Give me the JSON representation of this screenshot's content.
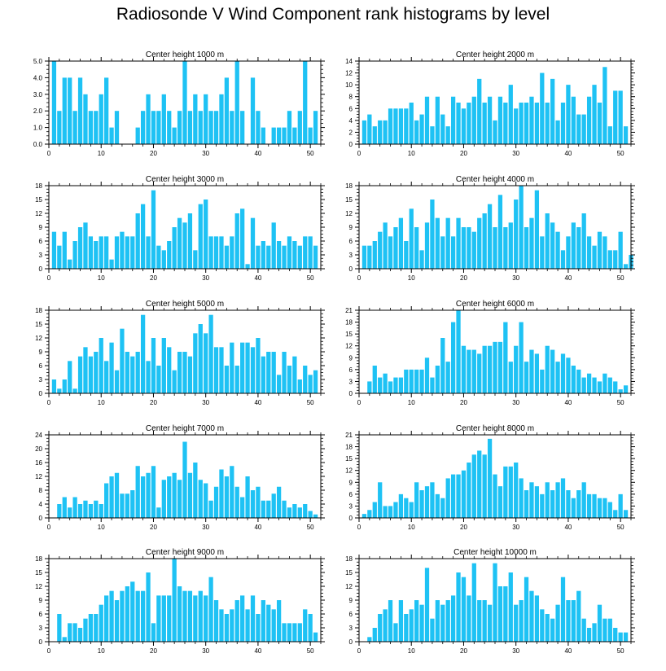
{
  "title": "Radiosonde V Wind Component rank histograms by level",
  "bar_color": "#1ec2f4",
  "chart_data": [
    {
      "type": "bar",
      "title": "Center height 1000 m",
      "xlim": [
        0,
        52
      ],
      "ylim": [
        0,
        5
      ],
      "yticks": [
        0,
        1,
        2,
        3,
        4,
        5
      ],
      "ytick_labels": [
        "0.0",
        "1.0",
        "2.0",
        "3.0",
        "4.0",
        "5.0"
      ],
      "xticks": [
        0,
        10,
        20,
        30,
        40,
        50
      ],
      "values": [
        5,
        2,
        4,
        4,
        2,
        4,
        3,
        2,
        2,
        3,
        4,
        1,
        2,
        0,
        0,
        0,
        1,
        2,
        3,
        2,
        2,
        3,
        2,
        1,
        2,
        5,
        2,
        3,
        2,
        3,
        2,
        2,
        3,
        4,
        2,
        5,
        2,
        0,
        4,
        2,
        1,
        0,
        1,
        1,
        1,
        2,
        1,
        2,
        5,
        1,
        2
      ]
    },
    {
      "type": "bar",
      "title": "Center height 2000 m",
      "xlim": [
        0,
        52
      ],
      "ylim": [
        0,
        14
      ],
      "yticks": [
        0,
        2,
        4,
        6,
        8,
        10,
        12,
        14
      ],
      "ytick_labels": [
        "0",
        "2",
        "4",
        "6",
        "8",
        "10",
        "12",
        "14"
      ],
      "xticks": [
        0,
        10,
        20,
        30,
        40,
        50
      ],
      "values": [
        4,
        5,
        3,
        4,
        4,
        6,
        6,
        6,
        6,
        7,
        4,
        5,
        8,
        3,
        8,
        5,
        3,
        8,
        7,
        6,
        7,
        8,
        11,
        7,
        8,
        4,
        8,
        7,
        10,
        6,
        7,
        7,
        8,
        7,
        12,
        7,
        11,
        4,
        7,
        10,
        8,
        5,
        5,
        8,
        10,
        7,
        13,
        3,
        9,
        9,
        3
      ]
    },
    {
      "type": "bar",
      "title": "Center height 3000 m",
      "xlim": [
        0,
        52
      ],
      "ylim": [
        0,
        18
      ],
      "yticks": [
        0,
        3,
        6,
        9,
        12,
        15,
        18
      ],
      "ytick_labels": [
        "0",
        "3",
        "6",
        "9",
        "12",
        "15",
        "18"
      ],
      "xticks": [
        0,
        10,
        20,
        30,
        40,
        50
      ],
      "values": [
        8,
        5,
        8,
        2,
        6,
        9,
        10,
        7,
        6,
        7,
        7,
        2,
        7,
        8,
        7,
        7,
        12,
        14,
        7,
        17,
        5,
        4,
        6,
        9,
        11,
        10,
        12,
        4,
        14,
        15,
        7,
        7,
        7,
        5,
        7,
        12,
        13,
        1,
        11,
        5,
        6,
        5,
        10,
        6,
        5,
        7,
        6,
        5,
        7,
        7,
        5
      ]
    },
    {
      "type": "bar",
      "title": "Center height 4000 m",
      "xlim": [
        0,
        52
      ],
      "ylim": [
        0,
        18
      ],
      "yticks": [
        0,
        3,
        6,
        9,
        12,
        15,
        18
      ],
      "ytick_labels": [
        "0",
        "3",
        "6",
        "9",
        "12",
        "15",
        "18"
      ],
      "xticks": [
        0,
        10,
        20,
        30,
        40,
        50
      ],
      "values": [
        5,
        5,
        6,
        8,
        10,
        7,
        9,
        11,
        6,
        13,
        9,
        4,
        10,
        15,
        11,
        7,
        11,
        7,
        11,
        9,
        9,
        8,
        11,
        12,
        14,
        9,
        16,
        9,
        10,
        15,
        18,
        9,
        11,
        17,
        7,
        12,
        10,
        8,
        4,
        7,
        10,
        9,
        12,
        7,
        5,
        8,
        7,
        4,
        4,
        8,
        1,
        3
      ]
    },
    {
      "type": "bar",
      "title": "Center height 5000 m",
      "xlim": [
        0,
        52
      ],
      "ylim": [
        0,
        18
      ],
      "yticks": [
        0,
        3,
        6,
        9,
        12,
        15,
        18
      ],
      "ytick_labels": [
        "0",
        "3",
        "6",
        "9",
        "12",
        "15",
        "18"
      ],
      "xticks": [
        0,
        10,
        20,
        30,
        40,
        50
      ],
      "values": [
        3,
        1,
        3,
        7,
        1,
        8,
        10,
        8,
        9,
        12,
        7,
        11,
        5,
        14,
        9,
        8,
        9,
        17,
        7,
        12,
        6,
        12,
        10,
        5,
        9,
        9,
        8,
        13,
        15,
        13,
        17,
        10,
        10,
        6,
        11,
        6,
        11,
        11,
        10,
        12,
        8,
        9,
        9,
        4,
        9,
        6,
        8,
        3,
        6,
        4,
        5
      ]
    },
    {
      "type": "bar",
      "title": "Center height 6000 m",
      "xlim": [
        0,
        52
      ],
      "ylim": [
        0,
        21
      ],
      "yticks": [
        0,
        3,
        6,
        9,
        12,
        15,
        18,
        21
      ],
      "ytick_labels": [
        "0",
        "3",
        "6",
        "9",
        "12",
        "15",
        "18",
        "21"
      ],
      "xticks": [
        0,
        10,
        20,
        30,
        40,
        50
      ],
      "values": [
        0,
        3,
        7,
        4,
        5,
        3,
        4,
        4,
        6,
        6,
        6,
        6,
        9,
        4,
        7,
        14,
        8,
        18,
        21,
        12,
        11,
        11,
        10,
        12,
        12,
        13,
        13,
        18,
        8,
        12,
        18,
        8,
        11,
        10,
        6,
        12,
        11,
        8,
        10,
        9,
        7,
        6,
        4,
        5,
        4,
        3,
        5,
        4,
        3,
        1,
        2
      ]
    },
    {
      "type": "bar",
      "title": "Center height 7000 m",
      "xlim": [
        0,
        52
      ],
      "ylim": [
        0,
        24
      ],
      "yticks": [
        0,
        4,
        8,
        12,
        16,
        20,
        24
      ],
      "ytick_labels": [
        "0",
        "4",
        "8",
        "12",
        "16",
        "20",
        "24"
      ],
      "xticks": [
        0,
        10,
        20,
        30,
        40,
        50
      ],
      "values": [
        0,
        4,
        6,
        3,
        6,
        4,
        5,
        4,
        5,
        4,
        10,
        12,
        13,
        7,
        7,
        8,
        15,
        12,
        13,
        15,
        3,
        11,
        12,
        13,
        11,
        22,
        13,
        16,
        11,
        10,
        5,
        9,
        14,
        12,
        15,
        9,
        6,
        12,
        8,
        9,
        5,
        5,
        7,
        9,
        5,
        3,
        4,
        3,
        4,
        2,
        1
      ]
    },
    {
      "type": "bar",
      "title": "Center height 8000 m",
      "xlim": [
        0,
        52
      ],
      "ylim": [
        0,
        21
      ],
      "yticks": [
        0,
        3,
        6,
        9,
        12,
        15,
        18,
        21
      ],
      "ytick_labels": [
        "0",
        "3",
        "6",
        "9",
        "12",
        "15",
        "18",
        "21"
      ],
      "xticks": [
        0,
        10,
        20,
        30,
        40,
        50
      ],
      "values": [
        1,
        2,
        4,
        9,
        3,
        3,
        4,
        6,
        5,
        4,
        9,
        7,
        8,
        9,
        6,
        5,
        10,
        11,
        11,
        12,
        14,
        16,
        17,
        16,
        20,
        11,
        8,
        13,
        13,
        14,
        10,
        7,
        9,
        8,
        6,
        9,
        7,
        9,
        10,
        7,
        5,
        7,
        9,
        6,
        6,
        5,
        5,
        4,
        2,
        6,
        2
      ]
    },
    {
      "type": "bar",
      "title": "Center height 9000 m",
      "xlim": [
        0,
        52
      ],
      "ylim": [
        0,
        18
      ],
      "yticks": [
        0,
        3,
        6,
        9,
        12,
        15,
        18
      ],
      "ytick_labels": [
        "0",
        "3",
        "6",
        "9",
        "12",
        "15",
        "18"
      ],
      "xticks": [
        0,
        10,
        20,
        30,
        40,
        50
      ],
      "values": [
        0,
        6,
        1,
        4,
        4,
        3,
        5,
        6,
        6,
        8,
        10,
        11,
        9,
        11,
        12,
        13,
        11,
        11,
        15,
        4,
        10,
        10,
        10,
        18,
        12,
        11,
        11,
        10,
        11,
        10,
        14,
        9,
        7,
        6,
        7,
        9,
        10,
        7,
        10,
        6,
        9,
        8,
        7,
        9,
        4,
        4,
        4,
        4,
        7,
        6,
        2
      ]
    },
    {
      "type": "bar",
      "title": "Center height 10000 m",
      "xlim": [
        0,
        52
      ],
      "ylim": [
        0,
        18
      ],
      "yticks": [
        0,
        3,
        6,
        9,
        12,
        15,
        18
      ],
      "ytick_labels": [
        "0",
        "3",
        "6",
        "9",
        "12",
        "15",
        "18"
      ],
      "xticks": [
        0,
        10,
        20,
        30,
        40,
        50
      ],
      "values": [
        0,
        1,
        3,
        6,
        7,
        9,
        4,
        9,
        6,
        7,
        9,
        8,
        16,
        5,
        9,
        8,
        9,
        10,
        15,
        14,
        10,
        17,
        9,
        9,
        8,
        17,
        12,
        12,
        15,
        8,
        9,
        14,
        11,
        10,
        7,
        6,
        5,
        8,
        14,
        9,
        9,
        11,
        5,
        3,
        4,
        8,
        5,
        5,
        3,
        2,
        2
      ]
    }
  ]
}
